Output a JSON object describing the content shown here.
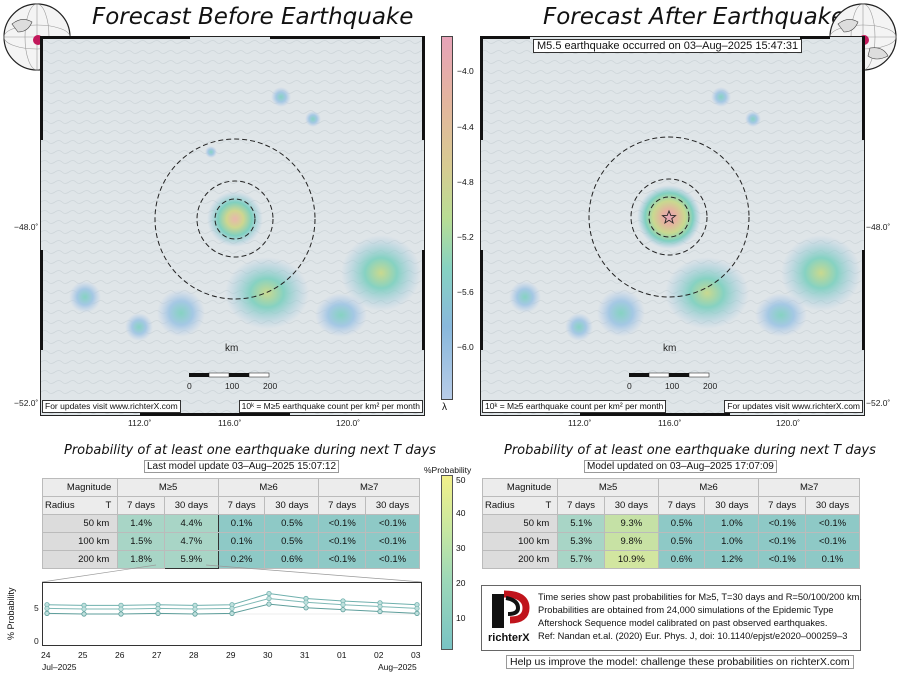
{
  "left_panel": {
    "title": "Forecast Before Earthquake",
    "footnote_left": "For updates visit www.richterX.com",
    "footnote_right": "10ᵏ = M≥5 earthquake count per km² per month",
    "scale": {
      "unit": "km",
      "ticks": [
        "0",
        "100",
        "200"
      ]
    }
  },
  "right_panel": {
    "title": "Forecast After Earthquake",
    "event_label": "M5.5 earthquake occurred on 03–Aug–2025 15:47:31",
    "footnote_left": "10ᵏ = M≥5 earthquake count per km² per month",
    "footnote_right": "For updates visit www.richterX.com",
    "scale": {
      "unit": "km",
      "ticks": [
        "0",
        "100",
        "200"
      ]
    }
  },
  "axes": {
    "lon_ticks": [
      "112.0˚",
      "116.0˚",
      "120.0˚"
    ],
    "lat_ticks": [
      "−48.0˚",
      "−52.0˚"
    ]
  },
  "colorbar": {
    "labels": [
      "−4.0",
      "−4.4",
      "−4.8",
      "−5.2",
      "−5.6",
      "−6.0"
    ],
    "symbol": "λ",
    "colors": [
      "#e7a3b8",
      "#e3b59e",
      "#d7cb92",
      "#b9dd94",
      "#86d2c2",
      "#88b8dc",
      "#b8cce8"
    ]
  },
  "prob_left": {
    "title": "Probability of at least one earthquake during next T days",
    "subtitle": "Last model update 03–Aug–2025 15:07:12"
  },
  "prob_right": {
    "title": "Probability of at least one earthquake during next T days",
    "subtitle": "Model updated on 03–Aug–2025 17:07:09"
  },
  "table_headers": {
    "magnitude": "Magnitude",
    "radius": "Radius",
    "t": "T",
    "m5": "M≥5",
    "m6": "M≥6",
    "m7": "M≥7",
    "d7": "7 days",
    "d30": "30 days"
  },
  "table_left": {
    "rows": [
      {
        "radius": "50 km",
        "v": [
          "1.4%",
          "4.4%",
          "0.1%",
          "0.5%",
          "<0.1%",
          "<0.1%"
        ]
      },
      {
        "radius": "100 km",
        "v": [
          "1.5%",
          "4.7%",
          "0.1%",
          "0.5%",
          "<0.1%",
          "<0.1%"
        ]
      },
      {
        "radius": "200 km",
        "v": [
          "1.8%",
          "5.9%",
          "0.2%",
          "0.6%",
          "<0.1%",
          "<0.1%"
        ]
      }
    ]
  },
  "table_right": {
    "rows": [
      {
        "radius": "50 km",
        "v": [
          "5.1%",
          "9.3%",
          "0.5%",
          "1.0%",
          "<0.1%",
          "<0.1%"
        ]
      },
      {
        "radius": "100 km",
        "v": [
          "5.3%",
          "9.8%",
          "0.5%",
          "1.0%",
          "<0.1%",
          "<0.1%"
        ]
      },
      {
        "radius": "200 km",
        "v": [
          "5.7%",
          "10.9%",
          "0.6%",
          "1.2%",
          "<0.1%",
          "0.1%"
        ]
      }
    ]
  },
  "prob_colorbar": {
    "title": "%Probability",
    "labels": [
      "50",
      "40",
      "30",
      "20",
      "10"
    ]
  },
  "timeseries": {
    "ylabel": "% Probability",
    "yticks": [
      "5",
      "0"
    ],
    "xticks": [
      "24",
      "25",
      "26",
      "27",
      "28",
      "29",
      "30",
      "31",
      "01",
      "02",
      "03"
    ],
    "month_start": "Jul–2025",
    "month_end": "Aug–2025"
  },
  "chart_data": {
    "type": "line",
    "x": [
      "24",
      "25",
      "26",
      "27",
      "28",
      "29",
      "30",
      "31",
      "01",
      "02",
      "03"
    ],
    "series": [
      {
        "values": [
          6.5,
          6.4,
          6.4,
          6.5,
          6.4,
          6.5,
          8.3,
          7.5,
          7.1,
          6.8,
          6.5
        ]
      },
      {
        "values": [
          5.9,
          5.8,
          5.8,
          5.9,
          5.8,
          5.9,
          7.5,
          6.9,
          6.5,
          6.2,
          5.9
        ]
      },
      {
        "values": [
          5.1,
          5.0,
          5.0,
          5.1,
          5.0,
          5.1,
          6.6,
          6.0,
          5.7,
          5.4,
          5.1
        ]
      }
    ],
    "ylim": [
      0,
      10
    ]
  },
  "info": {
    "logo_text": "richterX",
    "lines": [
      "Time series show past probabilities for M≥5, T=30 days and R=50/100/200 km.",
      "Probabilities are obtained from 24,000 simulations of the Epidemic Type",
      "Aftershock Sequence model calibrated on past observed earthquakes.",
      "Ref: Nandan et.al. (2020) Eur. Phys. J, doi: 10.1140/epjst/e2020–000259–3"
    ]
  },
  "help_text": "Help us improve the model: challenge these probabilities on richterX.com"
}
